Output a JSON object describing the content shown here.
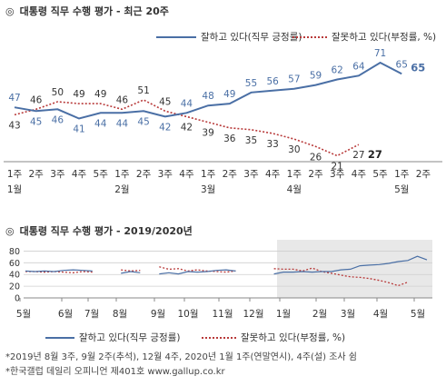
{
  "chart_data": [
    {
      "type": "line",
      "title": "대통령 직무 수행 평가 - 최근 20주",
      "title_marker": "◎",
      "categories": [
        "1주\n1월",
        "2주",
        "3주",
        "4주",
        "5주",
        "1주\n2월",
        "2주",
        "3주",
        "4주",
        "1주\n3월",
        "2주",
        "3주",
        "4주",
        "1주\n4월",
        "2주",
        "3주",
        "4주",
        "5주",
        "1주\n5월",
        "2주"
      ],
      "series": [
        {
          "name": "잘하고 있다(직무 긍정률)",
          "color": "#4a6fa5",
          "style": "solid",
          "values": [
            47,
            45,
            46,
            41,
            44,
            44,
            45,
            42,
            44,
            48,
            49,
            55,
            56,
            57,
            59,
            62,
            64,
            71,
            65,
            null
          ]
        },
        {
          "name": "잘못하고 있다(부정률, %)",
          "color": "#b83a3a",
          "style": "dotted",
          "values": [
            43,
            46,
            50,
            49,
            49,
            46,
            51,
            45,
            42,
            39,
            36,
            35,
            33,
            30,
            26,
            21,
            27,
            null,
            null,
            null
          ]
        }
      ],
      "legend_position": "top-right"
    },
    {
      "type": "line",
      "title": "대통령 직무 수행 평가 - 2019/2020년",
      "title_marker": "◎",
      "x_labels": [
        "5월",
        "6월",
        "7월",
        "8월",
        "9월",
        "10월",
        "11월",
        "12월",
        "1월",
        "2월",
        "3월",
        "4월",
        "5월"
      ],
      "y_ticks": [
        0,
        20,
        40,
        60,
        80
      ],
      "ylim": [
        0,
        90
      ],
      "highlight": "1월–5월",
      "series": [
        {
          "name": "잘하고 있다(직무 긍정률)",
          "color": "#4a6fa5",
          "style": "solid",
          "values": [
            46,
            45,
            46,
            45,
            47,
            48,
            47,
            46,
            null,
            null,
            42,
            45,
            43,
            null,
            41,
            43,
            41,
            45,
            44,
            45,
            47,
            48,
            46,
            null,
            45,
            null,
            41,
            44,
            44,
            45,
            44,
            45,
            45,
            48,
            49,
            55,
            56,
            57,
            59,
            62,
            64,
            71,
            65
          ]
        },
        {
          "name": "잘못하고 있다(부정률, %)",
          "color": "#b83a3a",
          "style": "dotted",
          "values": [
            45,
            45,
            44,
            45,
            44,
            43,
            45,
            44,
            null,
            null,
            48,
            46,
            47,
            null,
            53,
            49,
            50,
            46,
            48,
            46,
            45,
            44,
            46,
            null,
            46,
            null,
            50,
            49,
            49,
            46,
            51,
            45,
            42,
            39,
            36,
            35,
            33,
            30,
            26,
            21,
            27,
            null,
            null
          ]
        }
      ],
      "legend": [
        "잘하고 있다(직무 긍정률)",
        "잘못하고 있다(부정률, %)"
      ],
      "legend_position": "bottom"
    }
  ],
  "notes": [
    "*2019년 8월 3주, 9월 2주(추석), 12월 4주, 2020년 1월 1주(연말연시), 4주(설) 조사 쉼",
    "*한국갤럽 데일리 오피니언 제401호 www.gallup.co.kr"
  ]
}
